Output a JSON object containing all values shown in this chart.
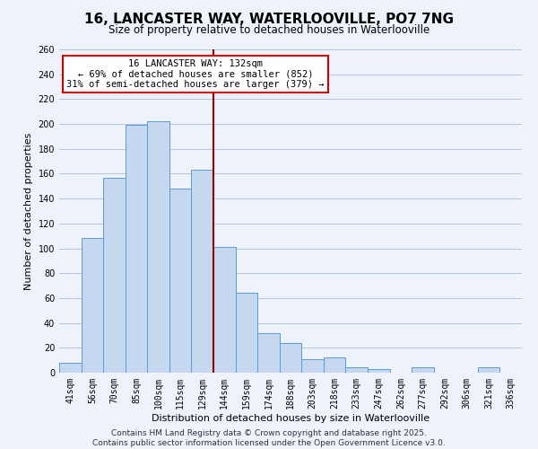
{
  "title": "16, LANCASTER WAY, WATERLOOVILLE, PO7 7NG",
  "subtitle": "Size of property relative to detached houses in Waterlooville",
  "xlabel": "Distribution of detached houses by size in Waterlooville",
  "ylabel": "Number of detached properties",
  "bar_color": "#c5d8f0",
  "bar_edge_color": "#5b9bd5",
  "background_color": "#eef2fb",
  "grid_color": "#aabdd8",
  "categories": [
    "41sqm",
    "56sqm",
    "70sqm",
    "85sqm",
    "100sqm",
    "115sqm",
    "129sqm",
    "144sqm",
    "159sqm",
    "174sqm",
    "188sqm",
    "203sqm",
    "218sqm",
    "233sqm",
    "247sqm",
    "262sqm",
    "277sqm",
    "292sqm",
    "306sqm",
    "321sqm",
    "336sqm"
  ],
  "values": [
    8,
    108,
    157,
    199,
    202,
    148,
    163,
    101,
    64,
    32,
    24,
    11,
    12,
    4,
    3,
    0,
    4,
    0,
    0,
    4,
    0
  ],
  "vline_x": 6.5,
  "vline_color": "#990000",
  "annotation_title": "16 LANCASTER WAY: 132sqm",
  "annotation_line1": "← 69% of detached houses are smaller (852)",
  "annotation_line2": "31% of semi-detached houses are larger (379) →",
  "annotation_box_color": "#ffffff",
  "annotation_box_edge_color": "#cc0000",
  "ylim": [
    0,
    260
  ],
  "yticks": [
    0,
    20,
    40,
    60,
    80,
    100,
    120,
    140,
    160,
    180,
    200,
    220,
    240,
    260
  ],
  "footer_line1": "Contains HM Land Registry data © Crown copyright and database right 2025.",
  "footer_line2": "Contains public sector information licensed under the Open Government Licence v3.0.",
  "title_fontsize": 11,
  "subtitle_fontsize": 8.5,
  "xlabel_fontsize": 8,
  "ylabel_fontsize": 8,
  "tick_fontsize": 7,
  "annotation_fontsize": 7.5,
  "footer_fontsize": 6.5
}
